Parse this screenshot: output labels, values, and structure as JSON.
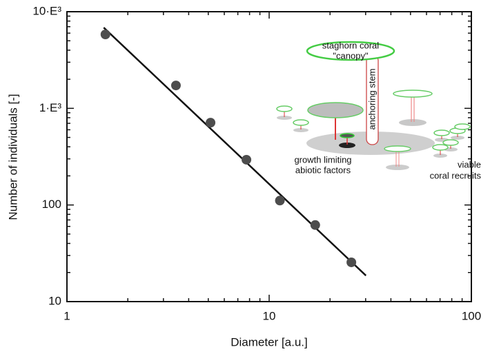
{
  "chart_data": {
    "type": "scatter",
    "x_label": "Diameter [a.u.]",
    "y_label": "Number of individuals [-]",
    "x": [
      1.55,
      3.46,
      5.13,
      7.72,
      11.3,
      16.9,
      25.5
    ],
    "y": [
      5820,
      1726,
      711,
      294,
      111,
      62,
      25.5
    ],
    "color": "#4d4d4d",
    "fit": {
      "x": [
        1.52,
        30.1
      ],
      "y": [
        6850,
        18.6
      ],
      "color": "#111111"
    },
    "xlim": [
      1,
      100
    ],
    "ylim": [
      10,
      10000
    ],
    "xticks": [
      1,
      10,
      100
    ],
    "yticks": [
      {
        "value": 10000,
        "label": "10·E³"
      },
      {
        "value": 1000,
        "label": "1·E³"
      },
      100,
      10
    ],
    "x_minor_ticks": [
      2,
      3,
      4,
      5,
      6,
      7,
      8,
      9,
      20,
      30,
      40,
      50,
      60,
      70,
      80,
      90
    ],
    "y_minor_ticks": [
      20,
      30,
      40,
      50,
      60,
      70,
      80,
      90,
      200,
      300,
      400,
      500,
      600,
      700,
      800,
      900,
      2000,
      3000,
      4000,
      5000,
      6000,
      7000,
      8000,
      9000
    ],
    "log_x": true,
    "log_y": true,
    "annotations": [
      "staghorn coral",
      "\"canopy\"",
      "anchoring stem",
      "growth limiting",
      "abiotic factors",
      "viable",
      "coral recruits"
    ]
  }
}
